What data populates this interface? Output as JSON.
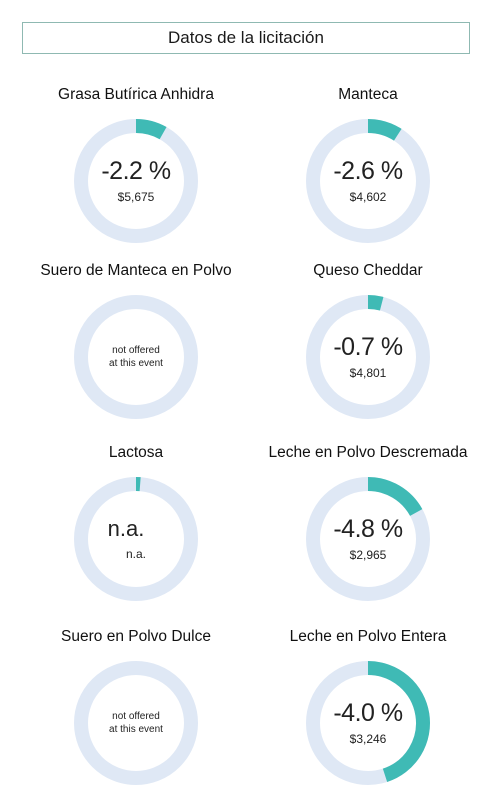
{
  "header": {
    "title": "Datos de la licitación"
  },
  "colors": {
    "ring_bg": "#dfe8f5",
    "ring_fg": "#3fbab5"
  },
  "chart_data": {
    "type": "donut",
    "title": "Datos de la licitación",
    "items": [
      {
        "name": "Grasa Butírica Anhidra",
        "change_label": "-2.2 %",
        "change_value": -2.2,
        "price_label": "$5,675",
        "offered": true
      },
      {
        "name": "Manteca",
        "change_label": "-2.6 %",
        "change_value": -2.6,
        "price_label": "$4,602",
        "offered": true
      },
      {
        "name": "Suero de Manteca en Polvo",
        "change_label": "",
        "change_value": null,
        "price_label": "",
        "offered": false,
        "note": "not offered at this event",
        "note_line1": "not offered",
        "note_line2": "at this event"
      },
      {
        "name": "Queso Cheddar",
        "change_label": "-0.7 %",
        "change_value": -0.7,
        "price_label": "$4,801",
        "offered": true
      },
      {
        "name": "Lactosa",
        "change_label": "n.a.",
        "change_value": null,
        "price_label": "n.a.",
        "offered": true,
        "na": true
      },
      {
        "name": "Leche en Polvo Descremada",
        "change_label": "-4.8 %",
        "change_value": -4.8,
        "price_label": "$2,965",
        "offered": true
      },
      {
        "name": "Suero en Polvo Dulce",
        "change_label": "",
        "change_value": null,
        "price_label": "",
        "offered": false,
        "note": "not offered at this event",
        "note_line1": "not offered",
        "note_line2": "at this event"
      },
      {
        "name": "Leche en Polvo Entera",
        "change_label": "-4.0 %",
        "change_value": -4.0,
        "price_label": "$3,246",
        "offered": true
      }
    ],
    "ring_fill_fractions": [
      0.082,
      0.091,
      0.0,
      0.04,
      0.012,
      0.17,
      0.0,
      0.45
    ]
  }
}
